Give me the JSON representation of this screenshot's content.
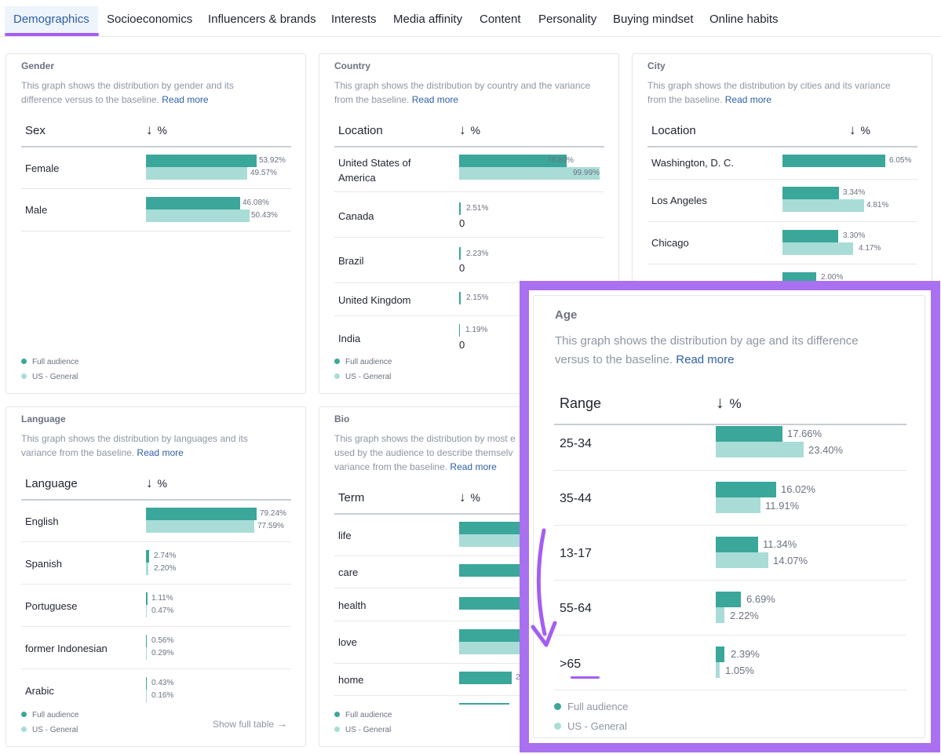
{
  "tabs": [
    "Demographics",
    "Socioeconomics",
    "Influencers & brands",
    "Interests",
    "Media affinity",
    "Content",
    "Personality",
    "Buying mindset",
    "Online habits"
  ],
  "legend": {
    "full": "Full audience",
    "baseline": "US - General"
  },
  "pct_symbol": "%",
  "arrow_glyph": "↓",
  "colors": {
    "full": "#3aa79a",
    "baseline": "#a9dcd7",
    "accent": "#a45ef2",
    "link": "#2f5fa7"
  },
  "gender": {
    "title": "Gender",
    "desc1": "This graph shows the distribution by gender and its",
    "desc2": "difference versus to the baseline.",
    "read_more": "Read more",
    "col": "Sex",
    "rows": [
      {
        "label": "Female",
        "a": 53.92,
        "b": 49.57,
        "a_text": "53.92%",
        "b_text": "49.57%"
      },
      {
        "label": "Male",
        "a": 46.08,
        "b": 50.43,
        "a_text": "46.08%",
        "b_text": "50.43%"
      }
    ]
  },
  "country": {
    "title": "Country",
    "desc1": "This graph shows the distribution by country and the variance",
    "desc2": "from the baseline.",
    "read_more": "Read more",
    "col": "Location",
    "rows": [
      {
        "label1": "United States of",
        "label2": "America",
        "a": 76.8,
        "b": 99.99,
        "a_text": "76.80%",
        "b_text": "99.99%"
      },
      {
        "label": "Canada",
        "a": 2.51,
        "a_text": "2.51%",
        "b_text": "0"
      },
      {
        "label": "Brazil",
        "a": 2.23,
        "a_text": "2.23%",
        "b_text": "0"
      },
      {
        "label": "United Kingdom",
        "a": 2.15,
        "a_text": "2.15%"
      },
      {
        "label": "India",
        "a": 1.19,
        "a_text": "1.19%",
        "b_text": "0"
      }
    ]
  },
  "city": {
    "title": "City",
    "desc1": "This graph shows the distribution by cities and its variance",
    "desc2": "from the baseline.",
    "read_more": "Read more",
    "col": "Location",
    "rows": [
      {
        "label": "Washington, D. C.",
        "a": 6.05,
        "a_text": "6.05%"
      },
      {
        "label": "Los Angeles",
        "a": 3.34,
        "b": 4.81,
        "a_text": "3.34%",
        "b_text": "4.81%"
      },
      {
        "label": "Chicago",
        "a": 3.3,
        "b": 4.17,
        "a_text": "3.30%",
        "b_text": "4.17%"
      },
      {
        "a": 2.0,
        "a_text": "2.00%"
      }
    ]
  },
  "language": {
    "title": "Language",
    "desc1": "This graph shows the distribution by languages and its",
    "desc2": "variance from the baseline.",
    "read_more": "Read more",
    "col": "Language",
    "show_full": "Show full table",
    "rows": [
      {
        "label": "English",
        "a": 79.24,
        "b": 77.59,
        "a_text": "79.24%",
        "b_text": "77.59%"
      },
      {
        "label": "Spanish",
        "a": 2.74,
        "b": 2.2,
        "a_text": "2.74%",
        "b_text": "2.20%"
      },
      {
        "label": "Portuguese",
        "a": 1.11,
        "b": 0.47,
        "a_text": "1.11%",
        "b_text": "0.47%"
      },
      {
        "label": "former Indonesian",
        "a": 0.56,
        "b": 0.29,
        "a_text": "0.56%",
        "b_text": "0.29%"
      },
      {
        "label": "Arabic",
        "a": 0.43,
        "b": 0.16,
        "a_text": "0.43%",
        "b_text": "0.16%"
      }
    ]
  },
  "bio": {
    "title": "Bio",
    "desc1": "This graph shows the distribution by most e",
    "desc2": "used by the audience to describe themselv",
    "desc3": "variance from the baseline.",
    "read_more": "Read more",
    "col": "Term",
    "rows": [
      {
        "label": "life"
      },
      {
        "label": "care"
      },
      {
        "label": "health"
      },
      {
        "label": "love"
      },
      {
        "label": "home",
        "a_text": "2"
      }
    ]
  },
  "age": {
    "title": "Age",
    "desc1": "This graph shows the distribution by age and its difference",
    "desc2": "versus to the baseline.",
    "read_more": "Read more",
    "col": "Range",
    "rows": [
      {
        "label": "25-34",
        "a": 17.66,
        "b": 23.4,
        "a_text": "17.66%",
        "b_text": "23.40%"
      },
      {
        "label": "35-44",
        "a": 16.02,
        "b": 11.91,
        "a_text": "16.02%",
        "b_text": "11.91%"
      },
      {
        "label": "13-17",
        "a": 11.34,
        "b": 14.07,
        "a_text": "11.34%",
        "b_text": "14.07%"
      },
      {
        "label": "55-64",
        "a": 6.69,
        "b": 2.22,
        "a_text": "6.69%",
        "b_text": "2.22%"
      },
      {
        "label": ">65",
        "a": 2.39,
        "b": 1.05,
        "a_text": "2.39%",
        "b_text": "1.05%"
      }
    ]
  }
}
